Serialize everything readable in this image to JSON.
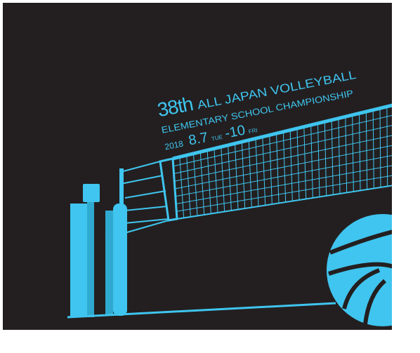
{
  "title": {
    "edition": "38th",
    "name": "ALL JAPAN VOLLEYBALL",
    "subtitle": "ELEMENTARY SCHOOL CHAMPIONSHIP",
    "year": "2018",
    "start_date": "8.7",
    "start_day": "TUE",
    "end_date": "-10",
    "end_day": "FRI"
  }
}
